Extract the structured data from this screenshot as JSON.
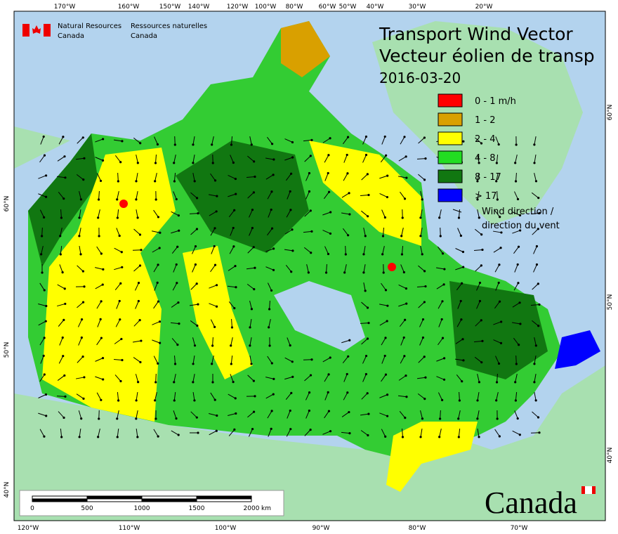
{
  "header": {
    "agency_en": [
      "Natural Resources",
      "Canada"
    ],
    "agency_fr": [
      "Ressources naturelles",
      "Canada"
    ]
  },
  "title": [
    "Transport Wind Vector",
    "Vecteur éolien de transp"
  ],
  "date": "2016-03-20",
  "legend": {
    "items": [
      {
        "label": "0 - 1 m/h",
        "color": "#ff0000"
      },
      {
        "label": "1 - 2",
        "color": "#d9a000"
      },
      {
        "label": "2 - 4",
        "color": "#ffff00"
      },
      {
        "label": "4 - 8",
        "color": "#22dd22"
      },
      {
        "label": "8 - 17",
        "color": "#117711"
      },
      {
        "label": "> 17",
        "color": "#0000ff"
      }
    ],
    "arrow_label": [
      "Wind direction /",
      "direction du vent"
    ]
  },
  "graticule": {
    "top": [
      "170°W",
      "160°W",
      "150°W",
      "140°W",
      "120°W",
      "100°W",
      "80°W",
      "60°W",
      "50°W",
      "40°W",
      "30°W",
      "20°W"
    ],
    "bottom": [
      "120°W",
      "110°W",
      "100°W",
      "90°W",
      "80°W",
      "70°W"
    ],
    "left": [
      "60°N",
      "50°N",
      "40°N"
    ],
    "right": [
      "60°N",
      "50°N",
      "40°N"
    ]
  },
  "scale_bar": {
    "labels": [
      "0",
      "500",
      "1000",
      "1500",
      "2000"
    ],
    "unit": "km"
  },
  "wordmark": "Canada"
}
